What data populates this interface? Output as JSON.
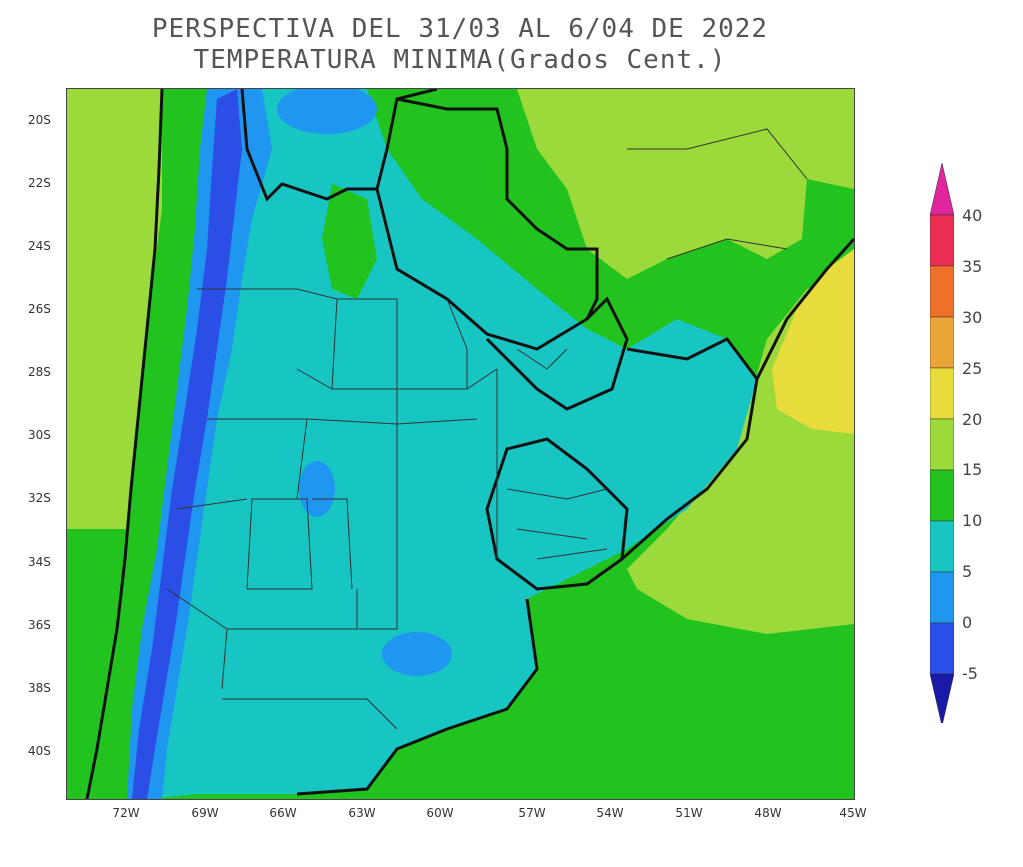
{
  "title": {
    "line1": "PERSPECTIVA DEL 31/03 AL 6/04 DE 2022",
    "line2": "TEMPERATURA MINIMA(Grados Cent.)"
  },
  "map": {
    "lat_labels": [
      "20S",
      "22S",
      "24S",
      "26S",
      "28S",
      "30S",
      "32S",
      "34S",
      "36S",
      "38S",
      "40S"
    ],
    "lon_labels": [
      "72W",
      "69W",
      "66W",
      "63W",
      "60W",
      "57W",
      "54W",
      "51W",
      "48W",
      "45W"
    ],
    "extent": {
      "lon": [
        -74,
        -45
      ],
      "lat": [
        -19,
        -41.5
      ]
    }
  },
  "colorbar": {
    "labels": [
      "40",
      "35",
      "30",
      "25",
      "20",
      "15",
      "10",
      "5",
      "0",
      "-5"
    ],
    "levels": [
      {
        "range": "35-40",
        "color": "#ea2f52"
      },
      {
        "range": "30-35",
        "color": "#f0702a"
      },
      {
        "range": "25-30",
        "color": "#e9a535"
      },
      {
        "range": "20-25",
        "color": "#e8dc3c"
      },
      {
        "range": "15-20",
        "color": "#9cd93a"
      },
      {
        "range": "10-15",
        "color": "#22c21f"
      },
      {
        "range": "5-10",
        "color": "#17c5c3"
      },
      {
        "range": "0-5",
        "color": "#1f96f0"
      },
      {
        "range": "-5-0",
        "color": "#2b4ee6"
      }
    ],
    "top_arrow_color": "#e0259e",
    "bottom_arrow_color": "#1a1aa8"
  }
}
